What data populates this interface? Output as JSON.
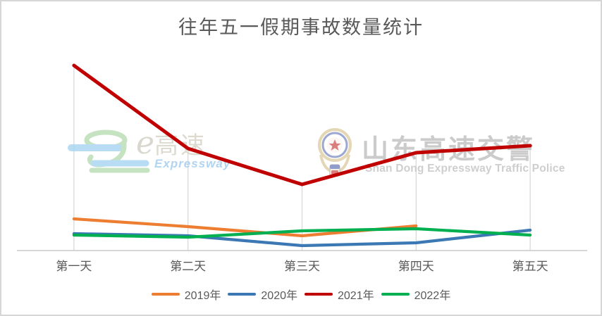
{
  "page": {
    "background": "#ffffff",
    "border_color": "#d6d6d6"
  },
  "title": "往年五一假期事故数量统计",
  "watermarks": {
    "e_expressway": {
      "logo_text_e": "e",
      "logo_text_cn": "高速",
      "subtitle": "Expressway"
    },
    "police": {
      "badge_icon": "police-badge-icon",
      "title": "山东高速交警",
      "subtitle": "Shan Dong Expressway Traffic Police"
    }
  },
  "chart_data": {
    "type": "line",
    "title": "往年五一假期事故数量统计",
    "categories": [
      "第一天",
      "第二天",
      "第三天",
      "第四天",
      "第五天"
    ],
    "series": [
      {
        "name": "2019年",
        "color": "#ED7D31",
        "values": [
          45,
          34,
          21,
          35,
          null
        ]
      },
      {
        "name": "2020年",
        "color": "#3B78B4",
        "values": [
          24,
          21,
          7,
          11,
          29
        ]
      },
      {
        "name": "2021年",
        "color": "#C00000",
        "values": [
          263,
          145,
          94,
          139,
          149
        ]
      },
      {
        "name": "2022年",
        "color": "#00B050",
        "values": [
          22,
          19,
          28,
          31,
          22
        ]
      }
    ],
    "xlabel": "",
    "ylabel": "",
    "ylim": [
      0,
      266
    ],
    "y_axis_labels_visible": false,
    "grid": "vertical-drop-lines-only",
    "legend_position": "bottom"
  },
  "colors": {
    "title_text": "#595959",
    "axis_label_text": "#595959",
    "legend_text": "#595959",
    "drop_line": "#D9D9D9",
    "axis_line": "#C9C9C9"
  }
}
